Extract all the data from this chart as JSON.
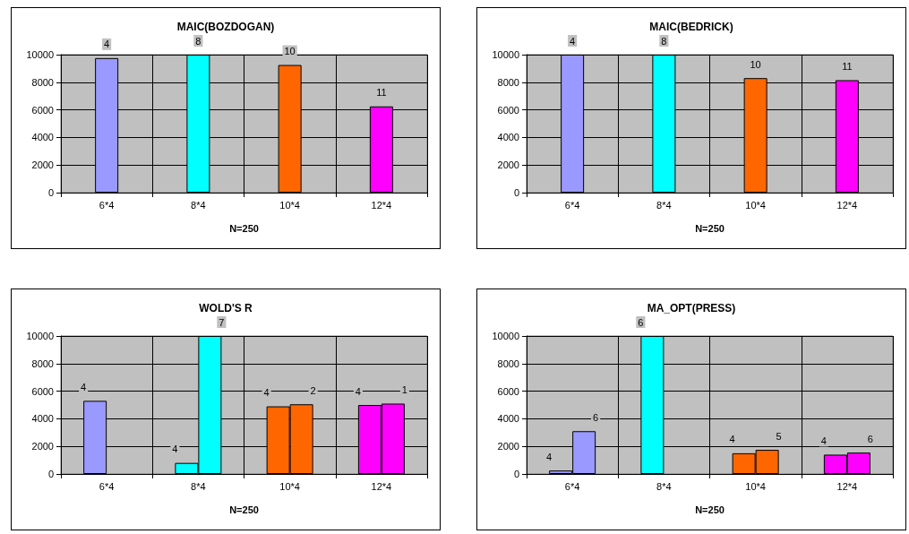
{
  "chart_data": [
    {
      "type": "bar",
      "title": "MAIC(BOZDOGAN)",
      "xlabel": "N=250",
      "categories": [
        "6*4",
        "8*4",
        "10*4",
        "12*4"
      ],
      "series": [
        {
          "values": [
            9750,
            10000,
            9250,
            6250
          ],
          "colors": [
            "#9999ff",
            "#00ffff",
            "#ff6600",
            "#ff00ff"
          ]
        }
      ],
      "annotations": [
        {
          "text": "4",
          "x": "6*4",
          "y": 9750
        },
        {
          "text": "8",
          "x": "8*4",
          "y": 10000
        },
        {
          "text": "10",
          "x": "10*4",
          "y": 9250
        },
        {
          "text": "11",
          "x": "12*4",
          "y": 6250
        }
      ],
      "ylim": [
        0,
        10000
      ],
      "yticks": [
        0,
        2000,
        4000,
        6000,
        8000,
        10000
      ],
      "grid": true
    },
    {
      "type": "bar",
      "title": "MAIC(BEDRICK)",
      "xlabel": "N=250",
      "categories": [
        "6*4",
        "8*4",
        "10*4",
        "12*4"
      ],
      "series": [
        {
          "values": [
            10000,
            10000,
            8300,
            8150
          ],
          "colors": [
            "#9999ff",
            "#00ffff",
            "#ff6600",
            "#ff00ff"
          ]
        }
      ],
      "annotations": [
        {
          "text": "4",
          "x": "6*4",
          "y": 10000
        },
        {
          "text": "8",
          "x": "8*4",
          "y": 10000
        },
        {
          "text": "10",
          "x": "10*4",
          "y": 8300
        },
        {
          "text": "11",
          "x": "12*4",
          "y": 8150
        }
      ],
      "ylim": [
        0,
        10000
      ],
      "yticks": [
        0,
        2000,
        4000,
        6000,
        8000,
        10000
      ],
      "grid": true
    },
    {
      "type": "bar",
      "title": "WOLD'S R",
      "xlabel": "N=250",
      "categories": [
        "6*4",
        "8*4",
        "10*4",
        "12*4"
      ],
      "series": [
        {
          "values": [
            5300,
            800,
            4900,
            5000
          ],
          "colors": [
            "#9999ff",
            "#00ffff",
            "#ff6600",
            "#ff00ff"
          ]
        },
        {
          "values": [
            null,
            10000,
            5050,
            5100
          ],
          "colors": [
            "#9999ff",
            "#00ffff",
            "#ff6600",
            "#ff00ff"
          ]
        }
      ],
      "annotations": [
        {
          "text": "4",
          "x": "6*4",
          "y": 5300
        },
        {
          "text": "4",
          "x": "8*4",
          "y": 800
        },
        {
          "text": "7",
          "x": "8*4",
          "y": 10000
        },
        {
          "text": "4",
          "x": "10*4",
          "y": 4900
        },
        {
          "text": "2",
          "x": "10*4",
          "y": 5050
        },
        {
          "text": "4",
          "x": "12*4",
          "y": 5000
        },
        {
          "text": "1",
          "x": "12*4",
          "y": 5100
        }
      ],
      "ylim": [
        0,
        10000
      ],
      "yticks": [
        0,
        2000,
        4000,
        6000,
        8000,
        10000
      ],
      "grid": true
    },
    {
      "type": "bar",
      "title": "MA_OPT(PRESS)",
      "xlabel": "N=250",
      "categories": [
        "6*4",
        "8*4",
        "10*4",
        "12*4"
      ],
      "series": [
        {
          "values": [
            250,
            10000,
            1500,
            1400
          ],
          "colors": [
            "#9999ff",
            "#00ffff",
            "#ff6600",
            "#ff00ff"
          ]
        },
        {
          "values": [
            3100,
            null,
            1750,
            1550
          ],
          "colors": [
            "#9999ff",
            "#00ffff",
            "#ff6600",
            "#ff00ff"
          ]
        }
      ],
      "annotations": [
        {
          "text": "4",
          "x": "6*4",
          "y": 250
        },
        {
          "text": "6",
          "x": "6*4",
          "y": 3100
        },
        {
          "text": "6",
          "x": "8*4",
          "y": 10000
        },
        {
          "text": "4",
          "x": "10*4",
          "y": 1500
        },
        {
          "text": "5",
          "x": "10*4",
          "y": 1750
        },
        {
          "text": "4",
          "x": "12*4",
          "y": 1400
        },
        {
          "text": "6",
          "x": "12*4",
          "y": 1550
        }
      ],
      "ylim": [
        0,
        10000
      ],
      "yticks": [
        0,
        2000,
        4000,
        6000,
        8000,
        10000
      ],
      "grid": true
    }
  ]
}
